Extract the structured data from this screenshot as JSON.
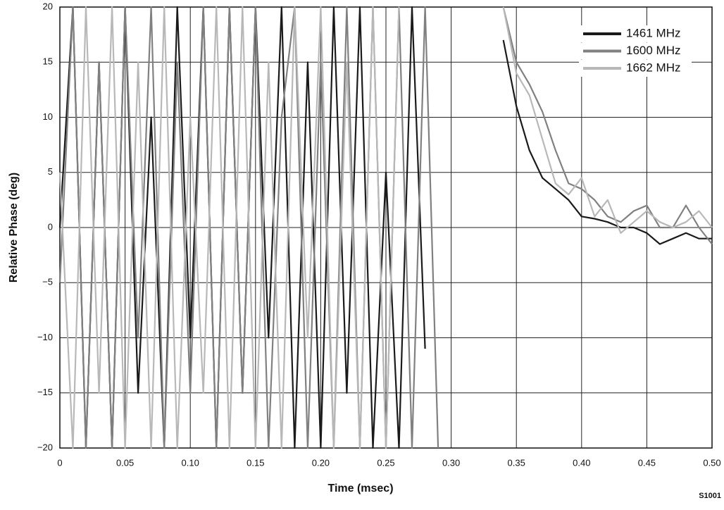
{
  "chart_data": {
    "type": "line",
    "xlabel": "Time (msec)",
    "ylabel": "Relative Phase (deg)",
    "note": "S1001",
    "x": [
      0,
      0.01,
      0.02,
      0.03,
      0.04,
      0.05,
      0.06,
      0.07,
      0.08,
      0.09,
      0.1,
      0.11,
      0.12,
      0.13,
      0.14,
      0.15,
      0.16,
      0.17,
      0.18,
      0.19,
      0.2,
      0.21,
      0.22,
      0.23,
      0.24,
      0.25,
      0.26,
      0.27,
      0.28,
      0.29,
      0.3,
      0.31,
      0.32,
      0.33,
      0.34,
      0.35,
      0.36,
      0.37,
      0.38,
      0.39,
      0.4,
      0.41,
      0.42,
      0.43,
      0.44,
      0.45,
      0.46,
      0.47,
      0.48,
      0.49,
      0.5
    ],
    "series": [
      {
        "name": "1461 MHz",
        "color": "#1a1a1a",
        "values": [
          0,
          20,
          -20,
          15,
          -20,
          20,
          -15,
          10,
          -20,
          20,
          -10,
          20,
          -20,
          20,
          -15,
          20,
          -10,
          20,
          -20,
          15,
          -20,
          20,
          -15,
          20,
          -20,
          5,
          -20,
          20,
          -11,
          null,
          null,
          null,
          null,
          null,
          17,
          11,
          7,
          4.5,
          3.5,
          2.5,
          1,
          0.8,
          0.5,
          0,
          0,
          -0.5,
          -1.5,
          -1,
          -0.5,
          -1,
          -1
        ]
      },
      {
        "name": "1600 MHz",
        "color": "#808080",
        "values": [
          -5,
          20,
          -20,
          15,
          -20,
          20,
          -10,
          20,
          -20,
          15,
          -15,
          20,
          -20,
          20,
          -15,
          20,
          -20,
          10,
          20,
          -20,
          15,
          -20,
          20,
          -20,
          20,
          -20,
          20,
          -20,
          20,
          -20,
          null,
          null,
          null,
          null,
          20,
          15,
          13,
          10.5,
          7,
          4,
          3.5,
          2.5,
          1,
          0.5,
          1.5,
          2,
          0,
          0,
          2,
          0,
          -1.5
        ]
      },
      {
        "name": "1662 MHz",
        "color": "#b8b8b8",
        "values": [
          5,
          -20,
          20,
          -15,
          20,
          -20,
          15,
          -20,
          20,
          -20,
          10,
          -15,
          20,
          -20,
          20,
          -20,
          15,
          -20,
          20,
          -10,
          20,
          -20,
          15,
          -20,
          20,
          -20,
          20,
          null,
          null,
          null,
          null,
          null,
          null,
          null,
          20,
          14,
          12,
          8,
          4,
          3,
          4.5,
          1,
          2.5,
          -0.5,
          0.5,
          1.5,
          0.5,
          0,
          0.5,
          1.5,
          0
        ]
      }
    ],
    "xlim": [
      0,
      0.5
    ],
    "xticks": [
      0,
      0.05,
      {
        "value": 0.1,
        "label": "0.10"
      },
      0.15,
      {
        "value": 0.2,
        "label": "0.20"
      },
      0.25,
      {
        "value": 0.3,
        "label": "0.30"
      },
      0.35,
      {
        "value": 0.4,
        "label": "0.40"
      },
      0.45,
      {
        "value": 0.5,
        "label": "0.50"
      }
    ],
    "ylim": [
      -20,
      20
    ],
    "yticks": [
      {
        "value": -20,
        "label": "−20"
      },
      {
        "value": -15,
        "label": "−15"
      },
      {
        "value": -10,
        "label": "−10"
      },
      {
        "value": -5,
        "label": "−5"
      },
      0,
      5,
      10,
      15,
      20
    ],
    "grid": true,
    "legend": "upper right"
  }
}
